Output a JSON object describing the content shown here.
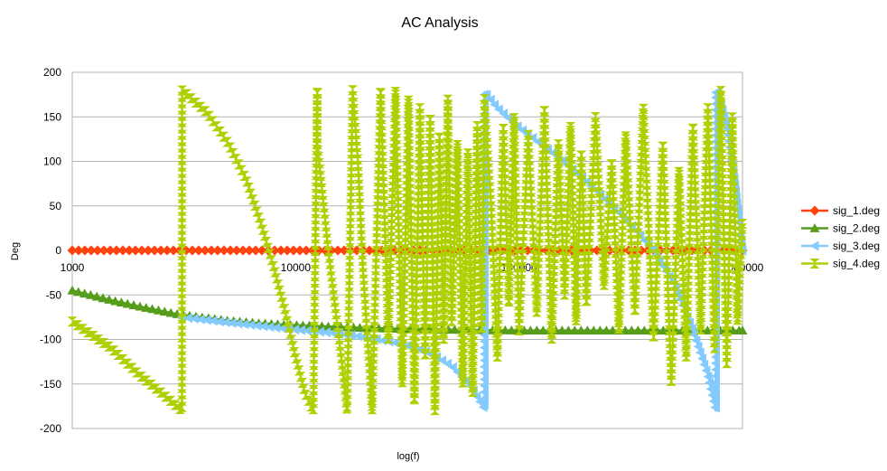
{
  "chart_data": {
    "type": "line",
    "title": "AC Analysis",
    "xlabel": "log(f)",
    "ylabel": "Deg",
    "x_scale": "log",
    "xlim": [
      1000,
      1000000
    ],
    "ylim": [
      -200,
      200
    ],
    "x_ticks": [
      "1000",
      "10000",
      "100000",
      "1000000"
    ],
    "y_ticks": [
      "200",
      "150",
      "100",
      "50",
      "0",
      "-50",
      "-100",
      "-150",
      "-200"
    ],
    "grid": "horizontal",
    "legend_position": "right",
    "series": [
      {
        "name": "sig_1.deg",
        "color": "#ff420e",
        "marker": "diamond",
        "x": [
          1000,
          1000000
        ],
        "y": [
          0,
          0
        ]
      },
      {
        "name": "sig_2.deg",
        "color": "#579d1c",
        "marker": "triangle-up",
        "x": [
          1000,
          1500,
          2000,
          3000,
          5000,
          7000,
          10000,
          20000,
          30000,
          50000,
          100000,
          300000,
          1000000
        ],
        "y": [
          -45,
          -56,
          -63,
          -72,
          -79,
          -82,
          -84,
          -87,
          -88,
          -89,
          -90,
          -90,
          -90
        ]
      },
      {
        "name": "sig_3.deg",
        "color": "#83caff",
        "marker": "triangle-left",
        "x": [
          3100,
          5000,
          7000,
          10000,
          15000,
          20000,
          30000,
          40000,
          50000,
          60000,
          70000,
          70001,
          80000,
          100000,
          150000,
          200000,
          300000,
          400000,
          500000,
          600000,
          700000,
          760000,
          760001,
          800000,
          850000,
          900000,
          950000,
          1000000
        ],
        "y": [
          -75,
          -81,
          -85,
          -89,
          -93,
          -97,
          -105,
          -115,
          -130,
          -150,
          -178,
          178,
          160,
          138,
          105,
          78,
          35,
          0,
          -40,
          -90,
          -140,
          -180,
          178,
          165,
          140,
          100,
          50,
          0
        ]
      },
      {
        "name": "sig_4.deg",
        "color": "#aecf00",
        "marker": "hourglass",
        "x": [
          1000,
          1500,
          2000,
          2500,
          3100,
          3101,
          4000,
          5000,
          6000,
          7000,
          8000,
          9000,
          10000,
          11000,
          12000,
          12500,
          12501,
          14000,
          16000,
          17000,
          18000,
          19000,
          20000,
          22000,
          24000,
          26000,
          28000,
          30000,
          32000,
          34000,
          36000,
          38000,
          40000,
          42000,
          44000,
          46000,
          48000,
          50000,
          53000,
          56000,
          59000,
          62000,
          65000,
          68000,
          70000,
          75000,
          80000,
          85000,
          90000,
          95000,
          100000,
          110000,
          120000,
          130000,
          140000,
          150000,
          160000,
          170000,
          180000,
          190000,
          200000,
          220000,
          240000,
          260000,
          280000,
          300000,
          330000,
          360000,
          400000,
          440000,
          480000,
          520000,
          560000,
          600000,
          650000,
          700000,
          750000,
          800000,
          850000,
          900000,
          950000,
          1000000
        ],
        "y": [
          -80,
          -110,
          -140,
          -160,
          -180,
          180,
          155,
          120,
          80,
          30,
          -20,
          -70,
          -120,
          -160,
          -180,
          180,
          120,
          0,
          -120,
          -180,
          180,
          100,
          -20,
          -180,
          180,
          -100,
          180,
          -150,
          170,
          -170,
          160,
          -120,
          150,
          -180,
          130,
          -100,
          170,
          -80,
          120,
          -150,
          110,
          -160,
          140,
          -90,
          170,
          50,
          -120,
          140,
          -60,
          150,
          -90,
          130,
          -70,
          160,
          -100,
          120,
          -50,
          140,
          -80,
          110,
          -60,
          150,
          -40,
          100,
          -90,
          130,
          -70,
          160,
          -100,
          120,
          -150,
          90,
          -120,
          140,
          -90,
          160,
          -110,
          180,
          -130,
          150,
          -80,
          30
        ]
      }
    ]
  }
}
